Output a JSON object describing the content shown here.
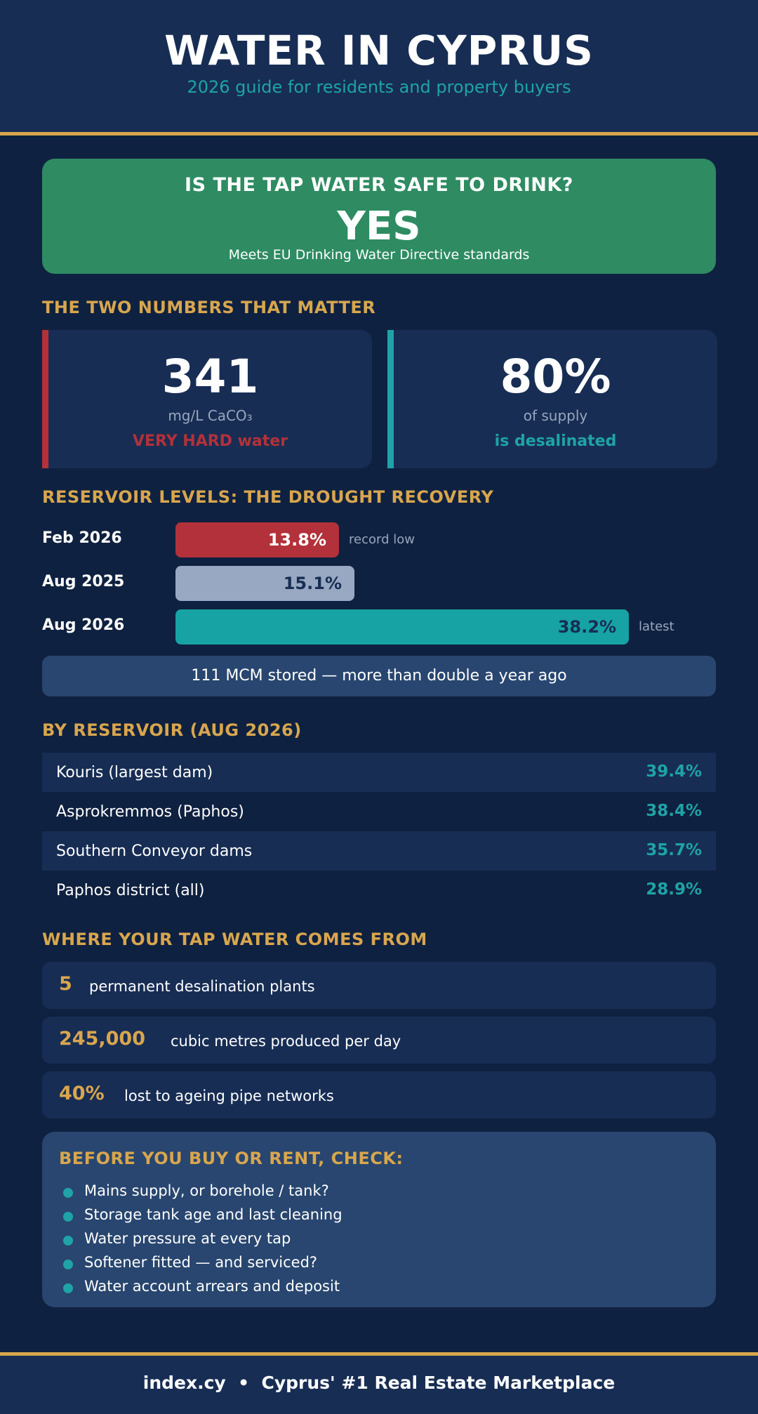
{
  "header": {
    "title": "WATER IN CYPRUS",
    "subtitle": "2026 guide for residents and property buyers"
  },
  "safety": {
    "question": "IS THE TAP WATER SAFE TO DRINK?",
    "answer": "YES",
    "note": "Meets EU Drinking Water Directive standards"
  },
  "numbers_section": {
    "title": "THE TWO NUMBERS THAT MATTER",
    "hardness": {
      "value": "341",
      "unit": "mg/L CaCO₃",
      "tag": "VERY HARD water"
    },
    "desalination": {
      "value": "80%",
      "unit": "of supply",
      "tag": "is desalinated"
    }
  },
  "reservoir_levels": {
    "title": "RESERVOIR LEVELS: THE DROUGHT RECOVERY",
    "rows": [
      {
        "label": "Feb 2026",
        "value": 13.8,
        "value_label": "13.8%",
        "note": "record low",
        "color": "#b3313a",
        "text_color": "#ffffff"
      },
      {
        "label": "Aug 2025",
        "value": 15.1,
        "value_label": "15.1%",
        "note": "",
        "color": "#98a8c2",
        "text_color": "#172d54"
      },
      {
        "label": "Aug 2026",
        "value": 38.2,
        "value_label": "38.2%",
        "note": "latest",
        "color": "#17a3a3",
        "text_color": "#172d54"
      }
    ],
    "stored_note": "111 MCM stored — more than double a year ago"
  },
  "by_reservoir": {
    "title": "BY RESERVOIR (AUG 2026)",
    "rows": [
      {
        "name": "Kouris (largest dam)",
        "pct": "39.4%"
      },
      {
        "name": "Asprokremmos (Paphos)",
        "pct": "38.4%"
      },
      {
        "name": "Southern Conveyor dams",
        "pct": "35.7%"
      },
      {
        "name": "Paphos district (all)",
        "pct": "28.9%"
      }
    ]
  },
  "sources": {
    "title": "WHERE YOUR TAP WATER COMES FROM",
    "facts": [
      {
        "num": "5",
        "text": "permanent desalination plants"
      },
      {
        "num": "245,000",
        "text": "cubic metres produced per day"
      },
      {
        "num": "40%",
        "text": "lost to ageing pipe networks"
      }
    ]
  },
  "checklist": {
    "title": "BEFORE YOU BUY OR RENT, CHECK:",
    "items": [
      "Mains supply, or borehole / tank?",
      "Storage tank age and last cleaning",
      "Water pressure at every tap",
      "Softener fitted — and serviced?",
      "Water account arrears and deposit"
    ]
  },
  "footer": {
    "text": "index.cy  •  Cyprus' #1 Real Estate Marketplace"
  },
  "colors": {
    "background": "#0f2140",
    "panel": "#172d54",
    "accent_gold": "#d8a64e",
    "accent_teal": "#1fa3a6",
    "safe_green": "#2e8b62",
    "alert_red": "#b3313a"
  }
}
